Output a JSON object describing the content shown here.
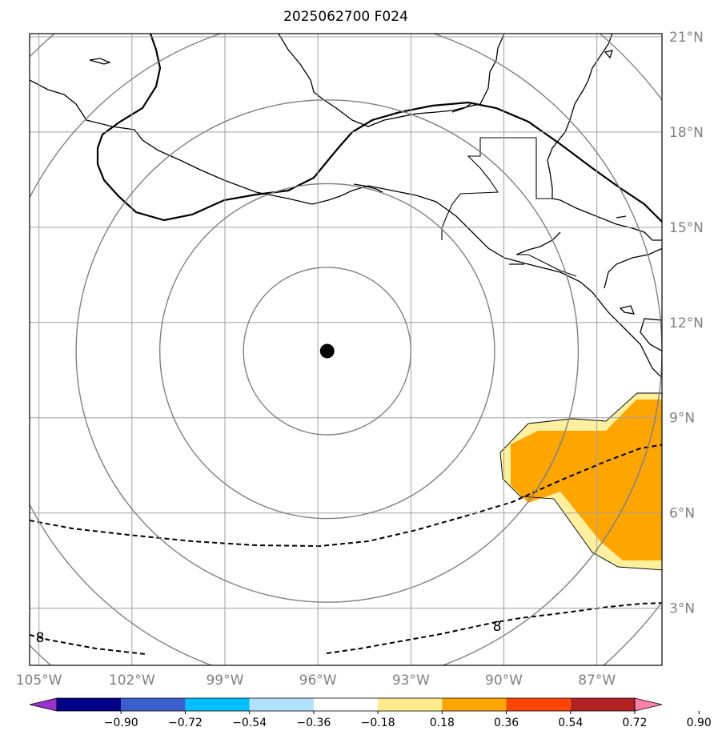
{
  "title": "2025062700 F024",
  "map": {
    "lon_min": -105.3,
    "lon_max": -84.9,
    "lat_min": 1.2,
    "lat_max": 21.1,
    "center_marker": {
      "lon": -95.7,
      "lat": 11.1
    },
    "range_rings_deg": [
      2.7,
      5.4,
      8.1,
      10.8,
      13.5
    ],
    "gridlines": {
      "lons": [
        -105,
        -102,
        -99,
        -96,
        -93,
        -90,
        -87
      ],
      "lats": [
        3,
        6,
        9,
        12,
        15,
        18,
        21
      ]
    },
    "lon_tick_labels": [
      "105°W",
      "102°W",
      "99°W",
      "96°W",
      "93°W",
      "90°W",
      "87°W"
    ],
    "lat_tick_labels": [
      "3°N",
      "6°N",
      "9°N",
      "12°N",
      "15°N",
      "18°N",
      "21°N"
    ],
    "contour_label_value": "8",
    "anomaly_region_colors": {
      "outer": "#fff0a0",
      "inner": "#ffa500"
    }
  },
  "colorbar": {
    "colors": [
      "#9932cc",
      "#00008b",
      "#3a5fcd",
      "#00bfff",
      "#b0e2ff",
      "#ffffff",
      "#ffeb8c",
      "#ffa500",
      "#ff4500",
      "#b22222",
      "#ff82ab"
    ],
    "tick_labels": [
      "−0.90",
      "−0.72",
      "−0.54",
      "−0.36",
      "−0.18",
      "0.18",
      "0.36",
      "0.54",
      "0.72",
      "0.90"
    ]
  }
}
